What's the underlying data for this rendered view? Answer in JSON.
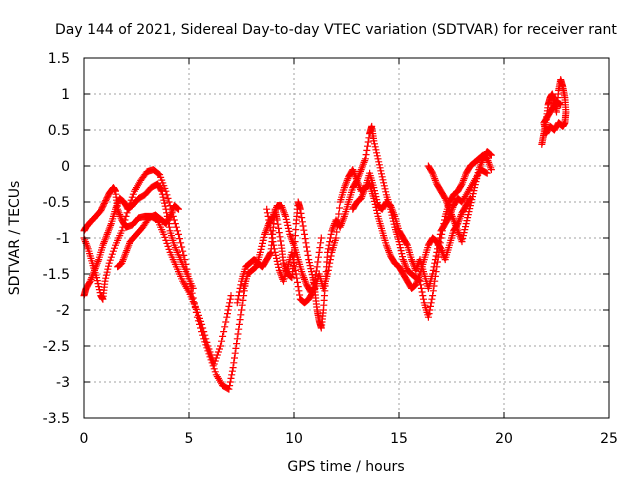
{
  "chart_data": {
    "type": "scatter",
    "title": "Day 144 of 2021, Sidereal Day-to-day VTEC variation (SDTVAR) for receiver rant",
    "xlabel": "GPS time / hours",
    "ylabel": "SDTVAR / TECUs",
    "xlim": [
      0,
      25
    ],
    "ylim": [
      -3.5,
      1.5
    ],
    "xticks": [
      0,
      5,
      10,
      15,
      20,
      25
    ],
    "yticks": [
      1.5,
      1,
      0.5,
      0,
      -0.5,
      -1,
      -1.5,
      -2,
      -2.5,
      -3,
      -3.5
    ],
    "xtick_labels": [
      "0",
      "5",
      "10",
      "15",
      "20",
      "25"
    ],
    "ytick_labels": [
      "1.5",
      "1",
      "0.5",
      "0",
      "-0.5",
      "-1",
      "-1.5",
      "-2",
      "-2.5",
      "-3",
      "-3.5"
    ],
    "grid": true,
    "marker": "+",
    "color": "#ff0000",
    "series": [
      {
        "points": [
          [
            0.0,
            -0.9
          ],
          [
            0.1,
            -0.85
          ],
          [
            0.3,
            -0.78
          ],
          [
            0.5,
            -0.72
          ],
          [
            0.8,
            -0.62
          ],
          [
            1.0,
            -0.5
          ],
          [
            1.2,
            -0.38
          ],
          [
            1.4,
            -0.3
          ],
          [
            1.5,
            -0.35
          ],
          [
            1.6,
            -0.6
          ],
          [
            1.8,
            -0.75
          ],
          [
            2.0,
            -0.85
          ],
          [
            2.3,
            -0.82
          ],
          [
            2.6,
            -0.72
          ],
          [
            2.9,
            -0.7
          ],
          [
            3.2,
            -0.7
          ],
          [
            3.5,
            -0.75
          ],
          [
            3.8,
            -0.95
          ],
          [
            4.1,
            -1.2
          ],
          [
            4.4,
            -1.4
          ],
          [
            4.7,
            -1.6
          ],
          [
            5.0,
            -1.75
          ],
          [
            5.3,
            -1.95
          ],
          [
            5.6,
            -2.2
          ],
          [
            5.9,
            -2.5
          ],
          [
            6.2,
            -2.75
          ],
          [
            6.5,
            -2.5
          ],
          [
            6.8,
            -2.1
          ],
          [
            7.0,
            -1.8
          ]
        ]
      },
      {
        "points": [
          [
            0.0,
            -1.0
          ],
          [
            0.2,
            -1.15
          ],
          [
            0.4,
            -1.35
          ],
          [
            0.6,
            -1.55
          ],
          [
            0.8,
            -1.8
          ],
          [
            0.9,
            -1.85
          ],
          [
            1.0,
            -1.6
          ],
          [
            1.2,
            -1.35
          ],
          [
            1.5,
            -1.1
          ],
          [
            1.8,
            -0.9
          ],
          [
            2.1,
            -0.6
          ],
          [
            2.4,
            -0.35
          ],
          [
            2.7,
            -0.2
          ],
          [
            3.0,
            -0.08
          ],
          [
            3.3,
            -0.05
          ],
          [
            3.6,
            -0.12
          ],
          [
            3.9,
            -0.35
          ],
          [
            4.2,
            -0.65
          ],
          [
            4.5,
            -0.95
          ],
          [
            4.8,
            -1.3
          ],
          [
            5.1,
            -1.7
          ],
          [
            5.4,
            -2.1
          ],
          [
            5.7,
            -2.4
          ],
          [
            6.0,
            -2.65
          ],
          [
            6.3,
            -2.9
          ],
          [
            6.6,
            -3.05
          ],
          [
            6.9,
            -3.1
          ],
          [
            7.1,
            -2.8
          ],
          [
            7.3,
            -2.4
          ],
          [
            7.5,
            -2.0
          ],
          [
            7.7,
            -1.6
          ]
        ]
      },
      {
        "points": [
          [
            1.6,
            -1.4
          ],
          [
            1.8,
            -1.35
          ],
          [
            2.0,
            -1.2
          ],
          [
            2.2,
            -1.05
          ],
          [
            2.5,
            -0.95
          ],
          [
            2.8,
            -0.85
          ],
          [
            3.1,
            -0.72
          ],
          [
            3.4,
            -0.68
          ],
          [
            3.7,
            -0.75
          ],
          [
            3.9,
            -0.8
          ],
          [
            4.1,
            -0.7
          ],
          [
            4.3,
            -0.55
          ],
          [
            4.5,
            -0.6
          ]
        ]
      },
      {
        "points": [
          [
            0.0,
            -1.8
          ],
          [
            0.1,
            -1.7
          ],
          [
            0.3,
            -1.6
          ],
          [
            0.5,
            -1.45
          ],
          [
            0.7,
            -1.3
          ],
          [
            0.9,
            -1.1
          ],
          [
            1.1,
            -0.95
          ],
          [
            1.3,
            -0.8
          ],
          [
            1.5,
            -0.6
          ],
          [
            1.7,
            -0.45
          ],
          [
            1.9,
            -0.5
          ],
          [
            2.1,
            -0.6
          ],
          [
            2.3,
            -0.55
          ],
          [
            2.6,
            -0.45
          ],
          [
            2.9,
            -0.4
          ],
          [
            3.2,
            -0.3
          ],
          [
            3.5,
            -0.25
          ],
          [
            3.7,
            -0.35
          ],
          [
            3.9,
            -0.6
          ],
          [
            4.1,
            -0.9
          ],
          [
            4.3,
            -1.1
          ],
          [
            4.6,
            -1.3
          ],
          [
            4.9,
            -1.5
          ],
          [
            5.2,
            -1.7
          ]
        ]
      },
      {
        "points": [
          [
            7.3,
            -1.9
          ],
          [
            7.5,
            -1.6
          ],
          [
            7.7,
            -1.4
          ],
          [
            7.9,
            -1.35
          ],
          [
            8.1,
            -1.3
          ],
          [
            8.3,
            -1.35
          ],
          [
            8.5,
            -1.4
          ],
          [
            8.7,
            -1.3
          ],
          [
            8.9,
            -1.2
          ],
          [
            9.0,
            -0.9
          ],
          [
            9.1,
            -0.6
          ],
          [
            9.2,
            -0.75
          ],
          [
            9.4,
            -1.1
          ],
          [
            9.5,
            -1.35
          ],
          [
            9.7,
            -1.5
          ],
          [
            9.9,
            -1.55
          ],
          [
            10.0,
            -1.3
          ],
          [
            10.1,
            -0.8
          ],
          [
            10.2,
            -0.5
          ],
          [
            10.3,
            -0.6
          ],
          [
            10.5,
            -0.95
          ],
          [
            10.7,
            -1.3
          ],
          [
            10.9,
            -1.55
          ],
          [
            11.0,
            -1.75
          ],
          [
            11.1,
            -2.0
          ],
          [
            11.2,
            -2.15
          ],
          [
            11.3,
            -2.25
          ],
          [
            11.4,
            -2.0
          ],
          [
            11.5,
            -1.6
          ],
          [
            11.6,
            -1.2
          ],
          [
            11.8,
            -0.9
          ],
          [
            12.0,
            -0.75
          ],
          [
            12.2,
            -0.85
          ],
          [
            12.4,
            -0.7
          ],
          [
            12.6,
            -0.5
          ],
          [
            12.8,
            -0.3
          ],
          [
            13.0,
            -0.2
          ],
          [
            13.2,
            -0.05
          ],
          [
            13.4,
            0.1
          ],
          [
            13.6,
            0.45
          ],
          [
            13.7,
            0.55
          ],
          [
            13.8,
            0.35
          ],
          [
            14.0,
            0.1
          ],
          [
            14.2,
            -0.15
          ],
          [
            14.4,
            -0.4
          ],
          [
            14.6,
            -0.6
          ],
          [
            14.8,
            -0.85
          ],
          [
            15.0,
            -1.05
          ],
          [
            15.2,
            -1.3
          ],
          [
            15.4,
            -1.45
          ],
          [
            15.6,
            -1.5
          ],
          [
            15.8,
            -1.55
          ],
          [
            16.0,
            -1.6
          ],
          [
            16.2,
            -1.9
          ],
          [
            16.4,
            -2.1
          ],
          [
            16.6,
            -1.8
          ],
          [
            16.8,
            -1.4
          ],
          [
            17.0,
            -1.0
          ],
          [
            17.2,
            -0.7
          ],
          [
            17.4,
            -0.5
          ],
          [
            17.6,
            -0.4
          ],
          [
            17.8,
            -0.35
          ],
          [
            18.0,
            -0.25
          ],
          [
            18.2,
            -0.1
          ],
          [
            18.4,
            0.0
          ],
          [
            18.6,
            0.05
          ],
          [
            18.8,
            0.1
          ],
          [
            19.0,
            0.15
          ],
          [
            19.2,
            0.1
          ],
          [
            19.4,
            -0.05
          ]
        ]
      },
      {
        "points": [
          [
            7.6,
            -1.7
          ],
          [
            7.8,
            -1.5
          ],
          [
            8.0,
            -1.45
          ],
          [
            8.2,
            -1.4
          ],
          [
            8.4,
            -1.2
          ],
          [
            8.6,
            -0.95
          ],
          [
            8.8,
            -0.8
          ],
          [
            9.0,
            -0.7
          ],
          [
            9.2,
            -0.55
          ],
          [
            9.4,
            -0.55
          ],
          [
            9.6,
            -0.7
          ],
          [
            9.8,
            -0.95
          ],
          [
            10.0,
            -1.1
          ],
          [
            10.2,
            -1.3
          ],
          [
            10.4,
            -1.5
          ],
          [
            10.6,
            -1.65
          ],
          [
            10.8,
            -1.75
          ],
          [
            11.0,
            -1.7
          ],
          [
            11.2,
            -1.5
          ],
          [
            11.4,
            -1.7
          ],
          [
            11.6,
            -1.5
          ],
          [
            11.8,
            -1.2
          ],
          [
            12.0,
            -1.0
          ],
          [
            12.2,
            -0.5
          ],
          [
            12.4,
            -0.3
          ],
          [
            12.6,
            -0.15
          ],
          [
            12.8,
            -0.05
          ],
          [
            13.0,
            -0.2
          ],
          [
            13.2,
            -0.35
          ],
          [
            13.4,
            -0.3
          ],
          [
            13.6,
            -0.1
          ],
          [
            13.8,
            -0.3
          ],
          [
            14.0,
            -0.55
          ],
          [
            14.2,
            -0.6
          ],
          [
            14.4,
            -0.5
          ],
          [
            14.6,
            -0.55
          ],
          [
            14.8,
            -0.7
          ],
          [
            15.0,
            -0.9
          ],
          [
            15.2,
            -1.0
          ],
          [
            15.4,
            -1.1
          ],
          [
            15.6,
            -1.3
          ],
          [
            15.8,
            -1.45
          ],
          [
            16.0,
            -1.3
          ],
          [
            16.2,
            -1.5
          ],
          [
            16.4,
            -1.7
          ],
          [
            16.6,
            -1.5
          ],
          [
            16.8,
            -1.2
          ],
          [
            17.0,
            -0.9
          ],
          [
            17.2,
            -0.8
          ],
          [
            17.4,
            -0.7
          ],
          [
            17.6,
            -0.55
          ],
          [
            17.8,
            -0.45
          ],
          [
            18.0,
            -0.5
          ],
          [
            18.3,
            -0.35
          ],
          [
            18.6,
            -0.2
          ],
          [
            18.9,
            -0.05
          ],
          [
            19.2,
            -0.1
          ]
        ]
      },
      {
        "points": [
          [
            8.7,
            -0.6
          ],
          [
            8.9,
            -0.9
          ],
          [
            9.1,
            -1.2
          ],
          [
            9.3,
            -1.45
          ],
          [
            9.5,
            -1.6
          ],
          [
            9.7,
            -1.4
          ],
          [
            9.9,
            -1.2
          ],
          [
            10.1,
            -1.5
          ],
          [
            10.3,
            -1.85
          ],
          [
            10.5,
            -1.9
          ],
          [
            10.7,
            -1.85
          ],
          [
            10.9,
            -1.75
          ],
          [
            11.1,
            -1.4
          ],
          [
            11.3,
            -1.0
          ]
        ]
      },
      {
        "points": [
          [
            12.8,
            -0.6
          ],
          [
            13.0,
            -0.5
          ],
          [
            13.2,
            -0.45
          ],
          [
            13.4,
            -0.3
          ],
          [
            13.6,
            -0.25
          ],
          [
            13.8,
            -0.45
          ],
          [
            14.0,
            -0.7
          ],
          [
            14.2,
            -0.9
          ],
          [
            14.4,
            -1.1
          ],
          [
            14.6,
            -1.25
          ],
          [
            14.8,
            -1.35
          ],
          [
            15.0,
            -1.4
          ],
          [
            15.2,
            -1.5
          ],
          [
            15.4,
            -1.6
          ],
          [
            15.6,
            -1.7
          ],
          [
            15.8,
            -1.65
          ],
          [
            16.0,
            -1.5
          ],
          [
            16.2,
            -1.3
          ],
          [
            16.4,
            -1.1
          ],
          [
            16.6,
            -1.0
          ],
          [
            16.8,
            -1.05
          ],
          [
            17.0,
            -1.15
          ],
          [
            17.2,
            -1.3
          ],
          [
            17.4,
            -1.1
          ],
          [
            17.6,
            -0.9
          ],
          [
            17.8,
            -0.8
          ],
          [
            18.0,
            -0.65
          ],
          [
            18.2,
            -0.55
          ],
          [
            18.4,
            -0.45
          ]
        ]
      },
      {
        "points": [
          [
            16.4,
            -0.0
          ],
          [
            16.6,
            -0.1
          ],
          [
            16.8,
            -0.25
          ],
          [
            17.0,
            -0.35
          ],
          [
            17.2,
            -0.45
          ],
          [
            17.4,
            -0.6
          ],
          [
            17.6,
            -0.75
          ],
          [
            17.8,
            -0.9
          ],
          [
            18.0,
            -1.05
          ],
          [
            18.2,
            -0.8
          ],
          [
            18.4,
            -0.55
          ],
          [
            18.6,
            -0.3
          ],
          [
            18.8,
            -0.05
          ],
          [
            19.0,
            0.1
          ],
          [
            19.2,
            0.2
          ],
          [
            19.4,
            0.15
          ]
        ]
      },
      {
        "points": [
          [
            21.8,
            0.3
          ],
          [
            21.9,
            0.45
          ],
          [
            22.0,
            0.6
          ],
          [
            22.1,
            0.85
          ],
          [
            22.2,
            0.95
          ],
          [
            22.3,
            1.0
          ],
          [
            22.4,
            0.9
          ],
          [
            22.5,
            0.75
          ],
          [
            22.6,
            1.05
          ],
          [
            22.7,
            1.2
          ],
          [
            22.8,
            1.1
          ],
          [
            22.9,
            0.95
          ],
          [
            22.95,
            0.75
          ],
          [
            22.9,
            0.6
          ],
          [
            22.8,
            0.55
          ],
          [
            22.6,
            0.6
          ],
          [
            22.4,
            0.5
          ],
          [
            22.2,
            0.55
          ],
          [
            22.0,
            0.45
          ],
          [
            21.9,
            0.6
          ],
          [
            22.1,
            0.7
          ],
          [
            22.3,
            0.8
          ],
          [
            22.5,
            0.9
          ],
          [
            22.7,
            0.85
          ]
        ]
      }
    ]
  }
}
